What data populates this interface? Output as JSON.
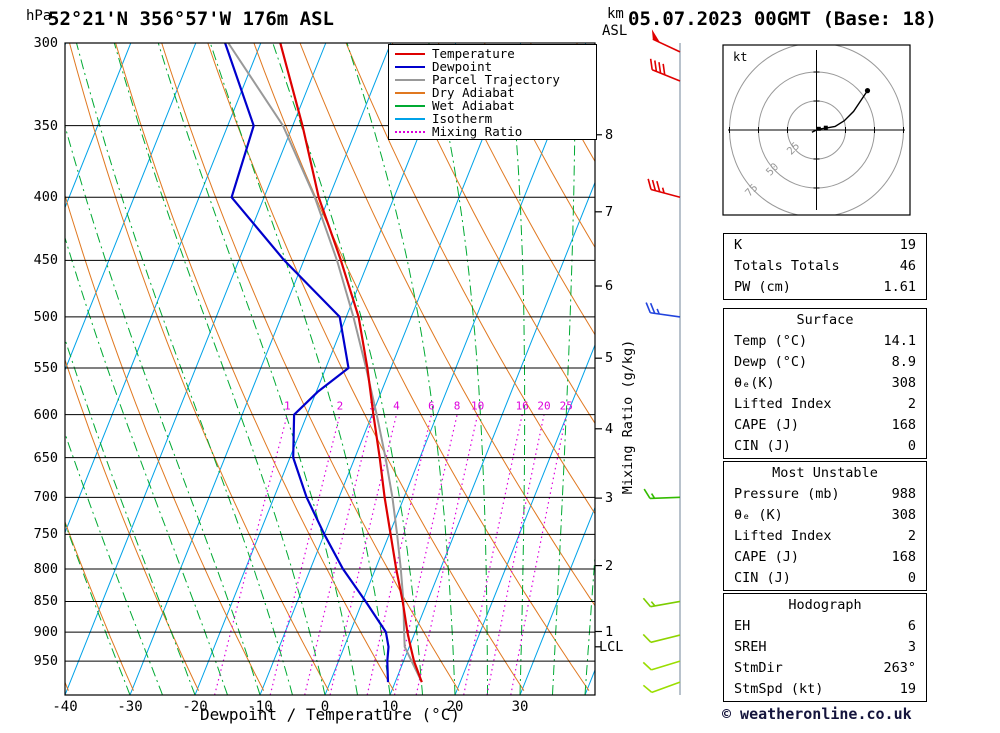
{
  "header": {
    "station": "52°21'N 356°57'W 176m ASL",
    "datetime": "05.07.2023 00GMT (Base: 18)"
  },
  "axes": {
    "pressure_unit": "hPa",
    "altitude_unit_km": "km",
    "altitude_unit_asl": "ASL",
    "pressure_ticks": [
      300,
      350,
      400,
      450,
      500,
      550,
      600,
      650,
      700,
      750,
      800,
      850,
      900,
      950
    ],
    "temp_ticks": [
      -40,
      -30,
      -20,
      -10,
      0,
      10,
      20,
      30
    ],
    "xlabel": "Dewpoint / Temperature (°C)",
    "right_label": "Mixing Ratio (g/kg)",
    "lcl_label": "LCL"
  },
  "legend": [
    {
      "label": "Temperature",
      "color": "#dd0000",
      "style": "solid"
    },
    {
      "label": "Dewpoint",
      "color": "#0000cc",
      "style": "solid"
    },
    {
      "label": "Parcel Trajectory",
      "color": "#999999",
      "style": "solid"
    },
    {
      "label": "Dry Adiabat",
      "color": "#e07820",
      "style": "solid"
    },
    {
      "label": "Wet Adiabat",
      "color": "#00aa33",
      "style": "solid"
    },
    {
      "label": "Isotherm",
      "color": "#00a2e8",
      "style": "solid"
    },
    {
      "label": "Mixing Ratio",
      "color": "#dd00dd",
      "style": "dotted"
    }
  ],
  "colors": {
    "temperature": "#dd0000",
    "dewpoint": "#0000cc",
    "parcel": "#999999",
    "dry_adiabat": "#e07820",
    "wet_adiabat": "#00aa33",
    "isotherm": "#00a2e8",
    "mixing_ratio": "#dd00dd",
    "grid": "#000000",
    "hodograph_rings": "#999999",
    "wind_column": "#8899aa"
  },
  "chart_data": {
    "type": "skewt-log-p",
    "pressure_range": [
      300,
      1012
    ],
    "temp_axis_range_c": [
      -40,
      41
    ],
    "isotherm_step_c": 10,
    "dry_adiabat_step_c": 10,
    "wet_adiabat_step_c": 5,
    "mixing_ratio_lines_gkg": [
      1,
      2,
      3,
      4,
      6,
      8,
      10,
      16,
      20,
      25
    ],
    "lcl_pressure_hpa": 925,
    "temperature_profile": {
      "pressure_hpa": [
        988,
        950,
        925,
        900,
        850,
        800,
        750,
        700,
        650,
        600,
        550,
        500,
        450,
        400,
        350,
        300
      ],
      "temp_c": [
        14.1,
        11.6,
        10.2,
        8.8,
        6.2,
        3.2,
        0.2,
        -3.0,
        -6.2,
        -9.8,
        -13.6,
        -18.1,
        -24.3,
        -31.6,
        -38.5,
        -47.0
      ]
    },
    "dewpoint_profile": {
      "pressure_hpa": [
        988,
        950,
        925,
        900,
        850,
        800,
        750,
        700,
        650,
        600,
        575,
        550,
        500,
        450,
        400,
        350,
        300
      ],
      "temp_c": [
        8.9,
        7.5,
        6.8,
        5.5,
        0.5,
        -5.0,
        -10.0,
        -15.0,
        -19.5,
        -22.0,
        -19.8,
        -16.5,
        -21.0,
        -33.0,
        -45.0,
        -46.0,
        -55.5
      ]
    },
    "parcel_profile": {
      "pressure_hpa": [
        988,
        925,
        900,
        850,
        800,
        750,
        700,
        650,
        600,
        550,
        500,
        450,
        400,
        350,
        300
      ],
      "temp_c": [
        14.1,
        9.3,
        8.3,
        6.3,
        3.9,
        1.2,
        -1.8,
        -5.3,
        -9.3,
        -13.8,
        -18.9,
        -24.9,
        -32.2,
        -41.5,
        -55.0
      ]
    },
    "km_ticks": [
      {
        "km": 1,
        "pressure_hpa": 899
      },
      {
        "km": 2,
        "pressure_hpa": 795
      },
      {
        "km": 3,
        "pressure_hpa": 701
      },
      {
        "km": 4,
        "pressure_hpa": 616
      },
      {
        "km": 5,
        "pressure_hpa": 540
      },
      {
        "km": 6,
        "pressure_hpa": 472
      },
      {
        "km": 7,
        "pressure_hpa": 411
      },
      {
        "km": 8,
        "pressure_hpa": 356
      }
    ],
    "wind_barbs": [
      {
        "pressure_hpa": 305,
        "speed_kt": 50,
        "direction_deg": 295,
        "color": "#e00000"
      },
      {
        "pressure_hpa": 322,
        "speed_kt": 40,
        "direction_deg": 292,
        "color": "#e00000"
      },
      {
        "pressure_hpa": 400,
        "speed_kt": 35,
        "direction_deg": 285,
        "color": "#e00000"
      },
      {
        "pressure_hpa": 500,
        "speed_kt": 25,
        "direction_deg": 278,
        "color": "#2244dd"
      },
      {
        "pressure_hpa": 700,
        "speed_kt": 15,
        "direction_deg": 268,
        "color": "#33bb00"
      },
      {
        "pressure_hpa": 850,
        "speed_kt": 15,
        "direction_deg": 260,
        "color": "#7ccd00"
      },
      {
        "pressure_hpa": 905,
        "speed_kt": 10,
        "direction_deg": 256,
        "color": "#8fd400"
      },
      {
        "pressure_hpa": 950,
        "speed_kt": 10,
        "direction_deg": 253,
        "color": "#9ade00"
      },
      {
        "pressure_hpa": 988,
        "speed_kt": 10,
        "direction_deg": 250,
        "color": "#9ade00"
      }
    ]
  },
  "hodograph": {
    "unit_label": "kt",
    "rings_kt": [
      25,
      50,
      75
    ],
    "trace_u_kt": [
      -4,
      0,
      4,
      10,
      16,
      24,
      32,
      40,
      44
    ],
    "trace_v_kt": [
      -2,
      0,
      1,
      2,
      3,
      8,
      16,
      28,
      34
    ],
    "marker_u_kt": [
      2,
      8
    ],
    "marker_v_kt": [
      1,
      2
    ]
  },
  "tables": {
    "indices": {
      "rows": [
        [
          "K",
          "19"
        ],
        [
          "Totals Totals",
          "46"
        ],
        [
          "PW (cm)",
          "1.61"
        ]
      ]
    },
    "surface": {
      "title": "Surface",
      "rows": [
        [
          "Temp (°C)",
          "14.1"
        ],
        [
          "Dewp (°C)",
          "8.9"
        ],
        [
          "θₑ(K)",
          "308"
        ],
        [
          "Lifted Index",
          "2"
        ],
        [
          "CAPE (J)",
          "168"
        ],
        [
          "CIN (J)",
          "0"
        ]
      ]
    },
    "most_unstable": {
      "title": "Most Unstable",
      "rows": [
        [
          "Pressure (mb)",
          "988"
        ],
        [
          "θₑ (K)",
          "308"
        ],
        [
          "Lifted Index",
          "2"
        ],
        [
          "CAPE (J)",
          "168"
        ],
        [
          "CIN (J)",
          "0"
        ]
      ]
    },
    "hodo": {
      "title": "Hodograph",
      "rows": [
        [
          "EH",
          "6"
        ],
        [
          "SREH",
          "3"
        ],
        [
          "StmDir",
          "263°"
        ],
        [
          "StmSpd (kt)",
          "19"
        ]
      ]
    }
  },
  "footer": {
    "copyright": "© weatheronline.co.uk"
  }
}
